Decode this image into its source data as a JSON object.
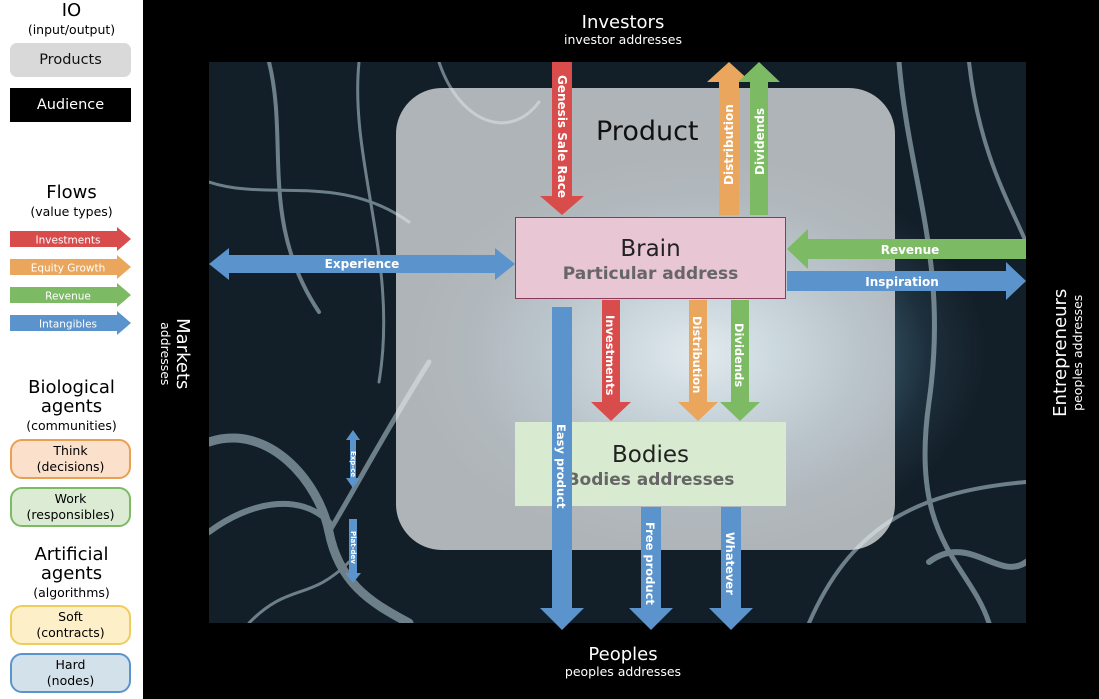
{
  "legend": {
    "io_title": "IO",
    "io_sub": "(input/output)",
    "products": "Products",
    "audience": "Audience",
    "flows_title": "Flows",
    "flows_sub": "(value types)",
    "flows": [
      {
        "label": "Investments",
        "color": "#d94c4c"
      },
      {
        "label": "Equity Growth",
        "color": "#e9a65c"
      },
      {
        "label": "Revenue",
        "color": "#7cbb64"
      },
      {
        "label": "Intangibles",
        "color": "#5b94cc"
      }
    ],
    "bio_title_1": "Biological",
    "bio_title_2": "agents",
    "bio_sub": "(communities)",
    "think": "Think",
    "think_sub": "(decisions)",
    "work": "Work",
    "work_sub": "(responsibles)",
    "art_title_1": "Artificial",
    "art_title_2": "agents",
    "art_sub": "(algorithms)",
    "soft": "Soft",
    "soft_sub": "(contracts)",
    "hard": "Hard",
    "hard_sub": "(nodes)"
  },
  "diagram": {
    "investors": "Investors",
    "investors_sub": "investor addresses",
    "peoples": "Peoples",
    "peoples_sub": "peoples addresses",
    "markets": "Markets",
    "markets_sub": "addresses",
    "entrepreneurs": "Entrepreneurs",
    "entrepreneurs_sub": "peoples addresses",
    "product": "Product",
    "brain": "Brain",
    "brain_sub": "Particular address",
    "bodies": "Bodies",
    "bodies_sub": "Bodies addresses",
    "arrows": {
      "genesis": "Genesis Sale Race",
      "distribution_top": "Distribution",
      "dividends_top": "Dividends",
      "revenue": "Revenue",
      "inspiration": "Inspiration",
      "experience": "Experience",
      "investments": "Investments",
      "distribution_mid": "Distribution",
      "dividends_mid": "Dividends",
      "easy_product": "Easy product",
      "free_product": "Free product",
      "whatever": "Whatever",
      "exp_ce": "Exp-ce",
      "plat_dev": "Plat-dev"
    }
  },
  "colors": {
    "red": "#d94c4c",
    "orange": "#e9a65c",
    "green": "#7cbb64",
    "blue": "#5b94cc",
    "think_fill": "#fbe0cc",
    "think_border": "#e9a052",
    "work_fill": "#dcecd4",
    "work_border": "#7cbb64",
    "soft_fill": "#fdf0c8",
    "soft_border": "#f0cc5c",
    "hard_fill": "#d3e2ea",
    "hard_border": "#5b94cc"
  }
}
